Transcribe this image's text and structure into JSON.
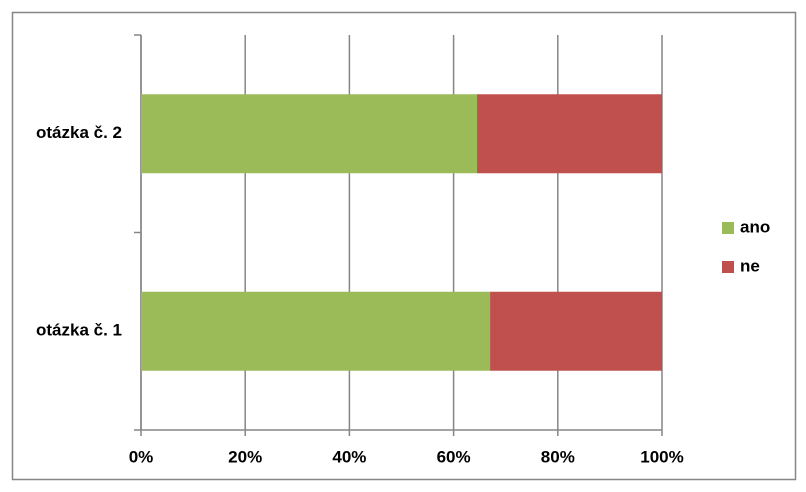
{
  "chart_data": {
    "type": "stacked-bar-horizontal",
    "categories": [
      "otázka č. 1",
      "otázka č. 2"
    ],
    "series": [
      {
        "name": "ano",
        "color": "#9bbb59",
        "values": [
          67,
          64.5
        ]
      },
      {
        "name": "ne",
        "color": "#c0504d",
        "values": [
          33,
          35.5
        ]
      }
    ],
    "xlim": [
      0,
      100
    ],
    "xticks": [
      {
        "value": 0,
        "label": "0%"
      },
      {
        "value": 20,
        "label": "20%"
      },
      {
        "value": 40,
        "label": "40%"
      },
      {
        "value": 60,
        "label": "60%"
      },
      {
        "value": 80,
        "label": "80%"
      },
      {
        "value": 100,
        "label": "100%"
      }
    ],
    "grid": true,
    "legend": "right"
  }
}
